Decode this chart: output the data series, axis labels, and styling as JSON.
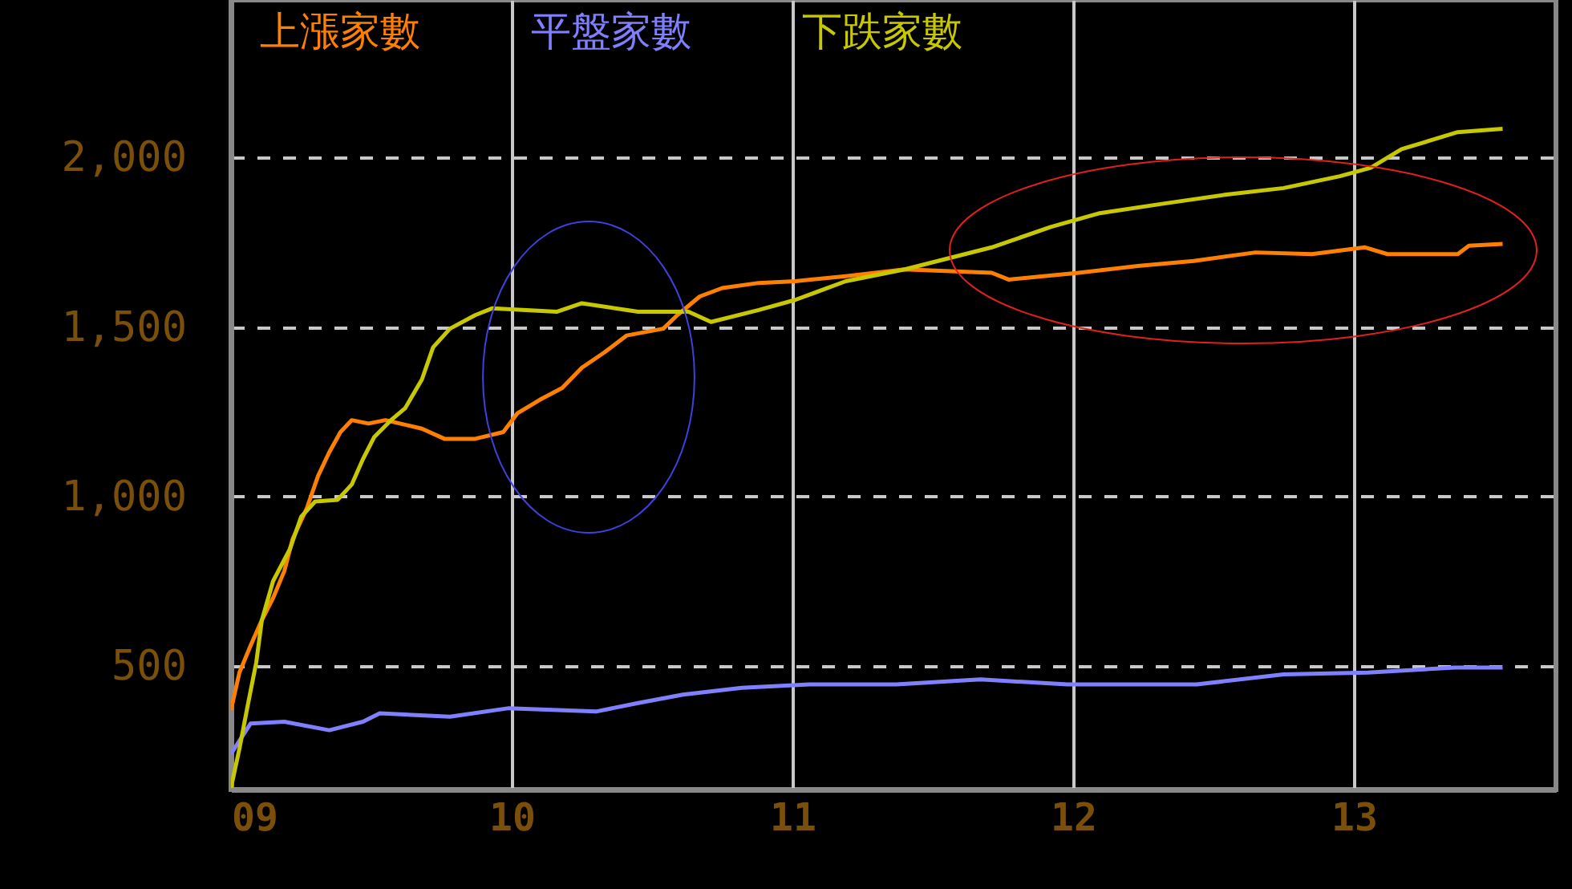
{
  "chart_data": {
    "type": "line",
    "legend": "top",
    "grid": true,
    "xlim": [
      9,
      13.72
    ],
    "ylim": [
      135,
      2465
    ],
    "xticks": [
      {
        "value": 9,
        "label": "09"
      },
      {
        "value": 10,
        "label": "10"
      },
      {
        "value": 11,
        "label": "11"
      },
      {
        "value": 12,
        "label": "12"
      },
      {
        "value": 13,
        "label": "13"
      }
    ],
    "yticks": [
      500,
      {
        "value": 1000,
        "label": "1,000"
      },
      {
        "value": 1500,
        "label": "1,500"
      },
      {
        "value": 2000,
        "label": "2,000"
      }
    ],
    "series": [
      {
        "name": "上漲家數",
        "color": "#ff8000",
        "x": [
          9.0,
          9.03,
          9.07,
          9.11,
          9.15,
          9.19,
          9.22,
          9.27,
          9.31,
          9.35,
          9.39,
          9.43,
          9.49,
          9.55,
          9.68,
          9.76,
          9.87,
          9.97,
          10.02,
          10.1,
          10.18,
          10.25,
          10.33,
          10.41,
          10.54,
          10.59,
          10.67,
          10.75,
          10.88,
          11.01,
          11.19,
          11.4,
          11.71,
          11.77,
          12.02,
          12.23,
          12.43,
          12.65,
          12.85,
          13.04,
          13.12,
          13.37,
          13.41,
          13.53
        ],
        "values": [
          370,
          480,
          560,
          635,
          700,
          780,
          875,
          965,
          1060,
          1130,
          1190,
          1225,
          1215,
          1225,
          1200,
          1170,
          1170,
          1190,
          1245,
          1285,
          1320,
          1380,
          1425,
          1475,
          1495,
          1535,
          1590,
          1615,
          1630,
          1635,
          1650,
          1670,
          1660,
          1640,
          1660,
          1680,
          1695,
          1720,
          1715,
          1735,
          1715,
          1715,
          1740,
          1745
        ]
      },
      {
        "name": "平盤家數",
        "color": "#8080ff",
        "x": [
          9.0,
          9.07,
          9.19,
          9.35,
          9.47,
          9.53,
          9.78,
          9.99,
          10.3,
          10.45,
          10.61,
          10.82,
          11.06,
          11.37,
          11.67,
          11.98,
          12.44,
          12.75,
          13.05,
          13.36,
          13.53
        ],
        "values": [
          240,
          330,
          335,
          310,
          335,
          360,
          350,
          375,
          365,
          390,
          415,
          435,
          445,
          445,
          460,
          445,
          445,
          475,
          480,
          495,
          495
        ]
      },
      {
        "name": "下跌家數",
        "color": "#c8c800",
        "x": [
          9.0,
          9.03,
          9.06,
          9.09,
          9.11,
          9.15,
          9.21,
          9.25,
          9.3,
          9.38,
          9.43,
          9.47,
          9.51,
          9.57,
          9.62,
          9.68,
          9.72,
          9.78,
          9.87,
          9.93,
          10.16,
          10.25,
          10.45,
          10.63,
          10.71,
          10.88,
          11.01,
          11.19,
          11.4,
          11.71,
          11.92,
          12.09,
          12.33,
          12.54,
          12.75,
          12.95,
          13.06,
          13.17,
          13.37,
          13.53
        ],
        "values": [
          140,
          255,
          385,
          510,
          635,
          750,
          845,
          940,
          985,
          990,
          1035,
          1110,
          1175,
          1225,
          1260,
          1345,
          1440,
          1495,
          1535,
          1555,
          1545,
          1570,
          1545,
          1545,
          1515,
          1550,
          1580,
          1635,
          1670,
          1735,
          1795,
          1835,
          1865,
          1890,
          1910,
          1945,
          1970,
          2025,
          2075,
          2085
        ]
      }
    ]
  }
}
